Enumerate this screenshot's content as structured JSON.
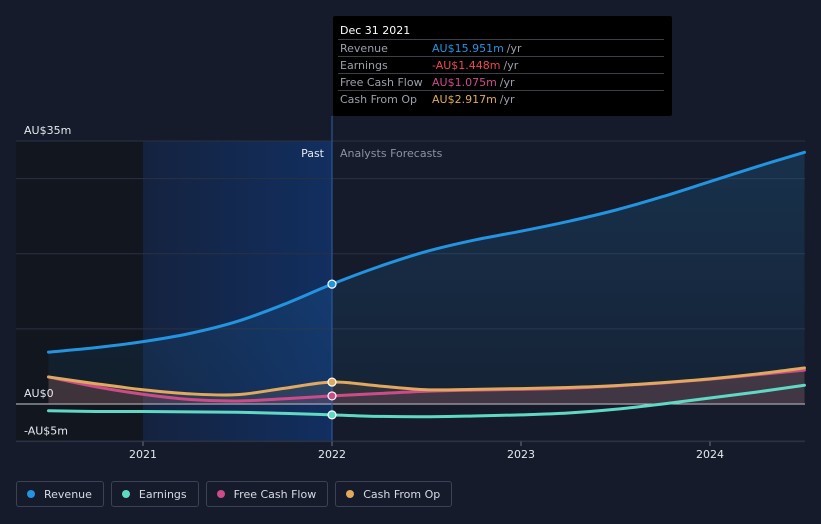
{
  "chart_data": {
    "type": "line",
    "x_ticks": [
      "2021",
      "2022",
      "2023",
      "2024"
    ],
    "y_ticks": [
      "AU$35m",
      "AU$0",
      "-AU$5m"
    ],
    "ylim": [
      -5,
      35
    ],
    "xlim": [
      2020.5,
      2024.5
    ],
    "divider_x": 2022.0,
    "past_label": "Past",
    "forecast_label": "Analysts Forecasts",
    "grid": true,
    "series": [
      {
        "name": "Revenue",
        "color": "#2394df",
        "fill": true,
        "points": [
          [
            2020.5,
            6.9
          ],
          [
            2020.75,
            7.5
          ],
          [
            2021.0,
            8.3
          ],
          [
            2021.25,
            9.4
          ],
          [
            2021.5,
            11.0
          ],
          [
            2021.75,
            13.3
          ],
          [
            2022.0,
            15.951
          ],
          [
            2022.25,
            18.3
          ],
          [
            2022.5,
            20.3
          ],
          [
            2022.75,
            21.8
          ],
          [
            2023.0,
            23.0
          ],
          [
            2023.25,
            24.3
          ],
          [
            2023.5,
            25.8
          ],
          [
            2023.75,
            27.6
          ],
          [
            2024.0,
            29.6
          ],
          [
            2024.25,
            31.6
          ],
          [
            2024.5,
            33.5
          ]
        ]
      },
      {
        "name": "Earnings",
        "color": "#5fd9c4",
        "fill": false,
        "points": [
          [
            2020.5,
            -0.9
          ],
          [
            2020.75,
            -1.0
          ],
          [
            2021.0,
            -1.0
          ],
          [
            2021.25,
            -1.05
          ],
          [
            2021.5,
            -1.1
          ],
          [
            2021.75,
            -1.25
          ],
          [
            2022.0,
            -1.448
          ],
          [
            2022.25,
            -1.65
          ],
          [
            2022.5,
            -1.7
          ],
          [
            2022.75,
            -1.6
          ],
          [
            2023.0,
            -1.45
          ],
          [
            2023.25,
            -1.2
          ],
          [
            2023.5,
            -0.7
          ],
          [
            2023.75,
            0.0
          ],
          [
            2024.0,
            0.8
          ],
          [
            2024.25,
            1.6
          ],
          [
            2024.5,
            2.5
          ]
        ]
      },
      {
        "name": "Free Cash Flow",
        "color": "#cc4c8a",
        "fill": true,
        "points": [
          [
            2020.5,
            3.6
          ],
          [
            2020.75,
            2.3
          ],
          [
            2021.0,
            1.3
          ],
          [
            2021.25,
            0.6
          ],
          [
            2021.5,
            0.4
          ],
          [
            2021.75,
            0.7
          ],
          [
            2022.0,
            1.075
          ],
          [
            2022.25,
            1.4
          ],
          [
            2022.5,
            1.7
          ],
          [
            2022.75,
            1.85
          ],
          [
            2023.0,
            1.95
          ],
          [
            2023.25,
            2.1
          ],
          [
            2023.5,
            2.4
          ],
          [
            2023.75,
            2.8
          ],
          [
            2024.0,
            3.3
          ],
          [
            2024.25,
            3.9
          ],
          [
            2024.5,
            4.5
          ]
        ]
      },
      {
        "name": "Cash From Op",
        "color": "#e0a95e",
        "fill": true,
        "points": [
          [
            2020.5,
            3.6
          ],
          [
            2020.75,
            2.7
          ],
          [
            2021.0,
            1.9
          ],
          [
            2021.25,
            1.35
          ],
          [
            2021.5,
            1.25
          ],
          [
            2021.75,
            2.1
          ],
          [
            2022.0,
            2.917
          ],
          [
            2022.25,
            2.4
          ],
          [
            2022.5,
            1.9
          ],
          [
            2022.75,
            1.95
          ],
          [
            2023.0,
            2.05
          ],
          [
            2023.25,
            2.2
          ],
          [
            2023.5,
            2.45
          ],
          [
            2023.75,
            2.85
          ],
          [
            2024.0,
            3.35
          ],
          [
            2024.25,
            4.0
          ],
          [
            2024.5,
            4.8
          ]
        ]
      }
    ]
  },
  "tooltip": {
    "date": "Dec 31 2021",
    "unit": "/yr",
    "rows": [
      {
        "label": "Revenue",
        "value": "AU$15.951m",
        "color": "#2394df"
      },
      {
        "label": "Earnings",
        "value": "-AU$1.448m",
        "color": "#ea4a4f"
      },
      {
        "label": "Free Cash Flow",
        "value": "AU$1.075m",
        "color": "#cc4c8a"
      },
      {
        "label": "Cash From Op",
        "value": "AU$2.917m",
        "color": "#e0a95e"
      }
    ]
  },
  "legend": [
    {
      "label": "Revenue",
      "color": "#2394df"
    },
    {
      "label": "Earnings",
      "color": "#5fd9c4"
    },
    {
      "label": "Free Cash Flow",
      "color": "#cc4c8a"
    },
    {
      "label": "Cash From Op",
      "color": "#e0a95e"
    }
  ]
}
